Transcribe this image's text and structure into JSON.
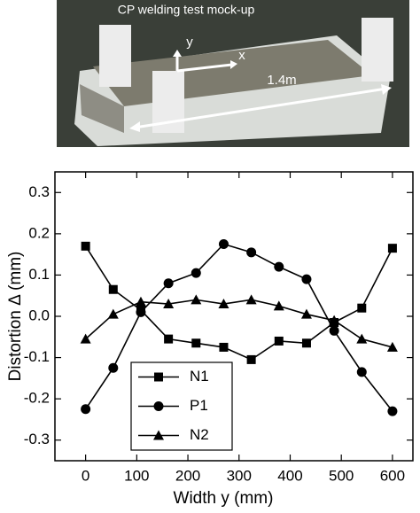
{
  "photo": {
    "title": "CP welding test mock-up",
    "axis_y": "y",
    "axis_x": "x",
    "length": "1.4m"
  },
  "chart_data": {
    "type": "line",
    "x_label": "Width  y (mm)",
    "y_label": "Distortion  Δ (mm)",
    "x": [
      0,
      54,
      108,
      162,
      216,
      270,
      324,
      378,
      432,
      486,
      540,
      600
    ],
    "series": [
      {
        "name": "N1",
        "color": "#000000",
        "marker": "square",
        "values": [
          0.17,
          0.065,
          0.015,
          -0.055,
          -0.065,
          -0.075,
          -0.105,
          -0.06,
          -0.065,
          -0.015,
          0.02,
          0.165
        ]
      },
      {
        "name": "P1",
        "color": "#000000",
        "marker": "circle",
        "values": [
          -0.225,
          -0.125,
          0.01,
          0.08,
          0.105,
          0.175,
          0.155,
          0.12,
          0.09,
          -0.035,
          -0.135,
          -0.23
        ]
      },
      {
        "name": "N2",
        "color": "#000000",
        "marker": "triangle",
        "values": [
          -0.055,
          0.005,
          0.035,
          0.03,
          0.04,
          0.03,
          0.04,
          0.025,
          0.005,
          -0.01,
          -0.055,
          -0.075
        ]
      }
    ],
    "xlim": [
      -60,
      640
    ],
    "xticks": [
      0,
      100,
      200,
      300,
      400,
      500,
      600
    ],
    "ylim": [
      -0.35,
      0.35
    ],
    "yticks": [
      -0.3,
      -0.2,
      -0.1,
      {
        "value": 0,
        "label": "0.0"
      },
      0.1,
      0.2,
      0.3
    ],
    "legend": "lower-left"
  }
}
